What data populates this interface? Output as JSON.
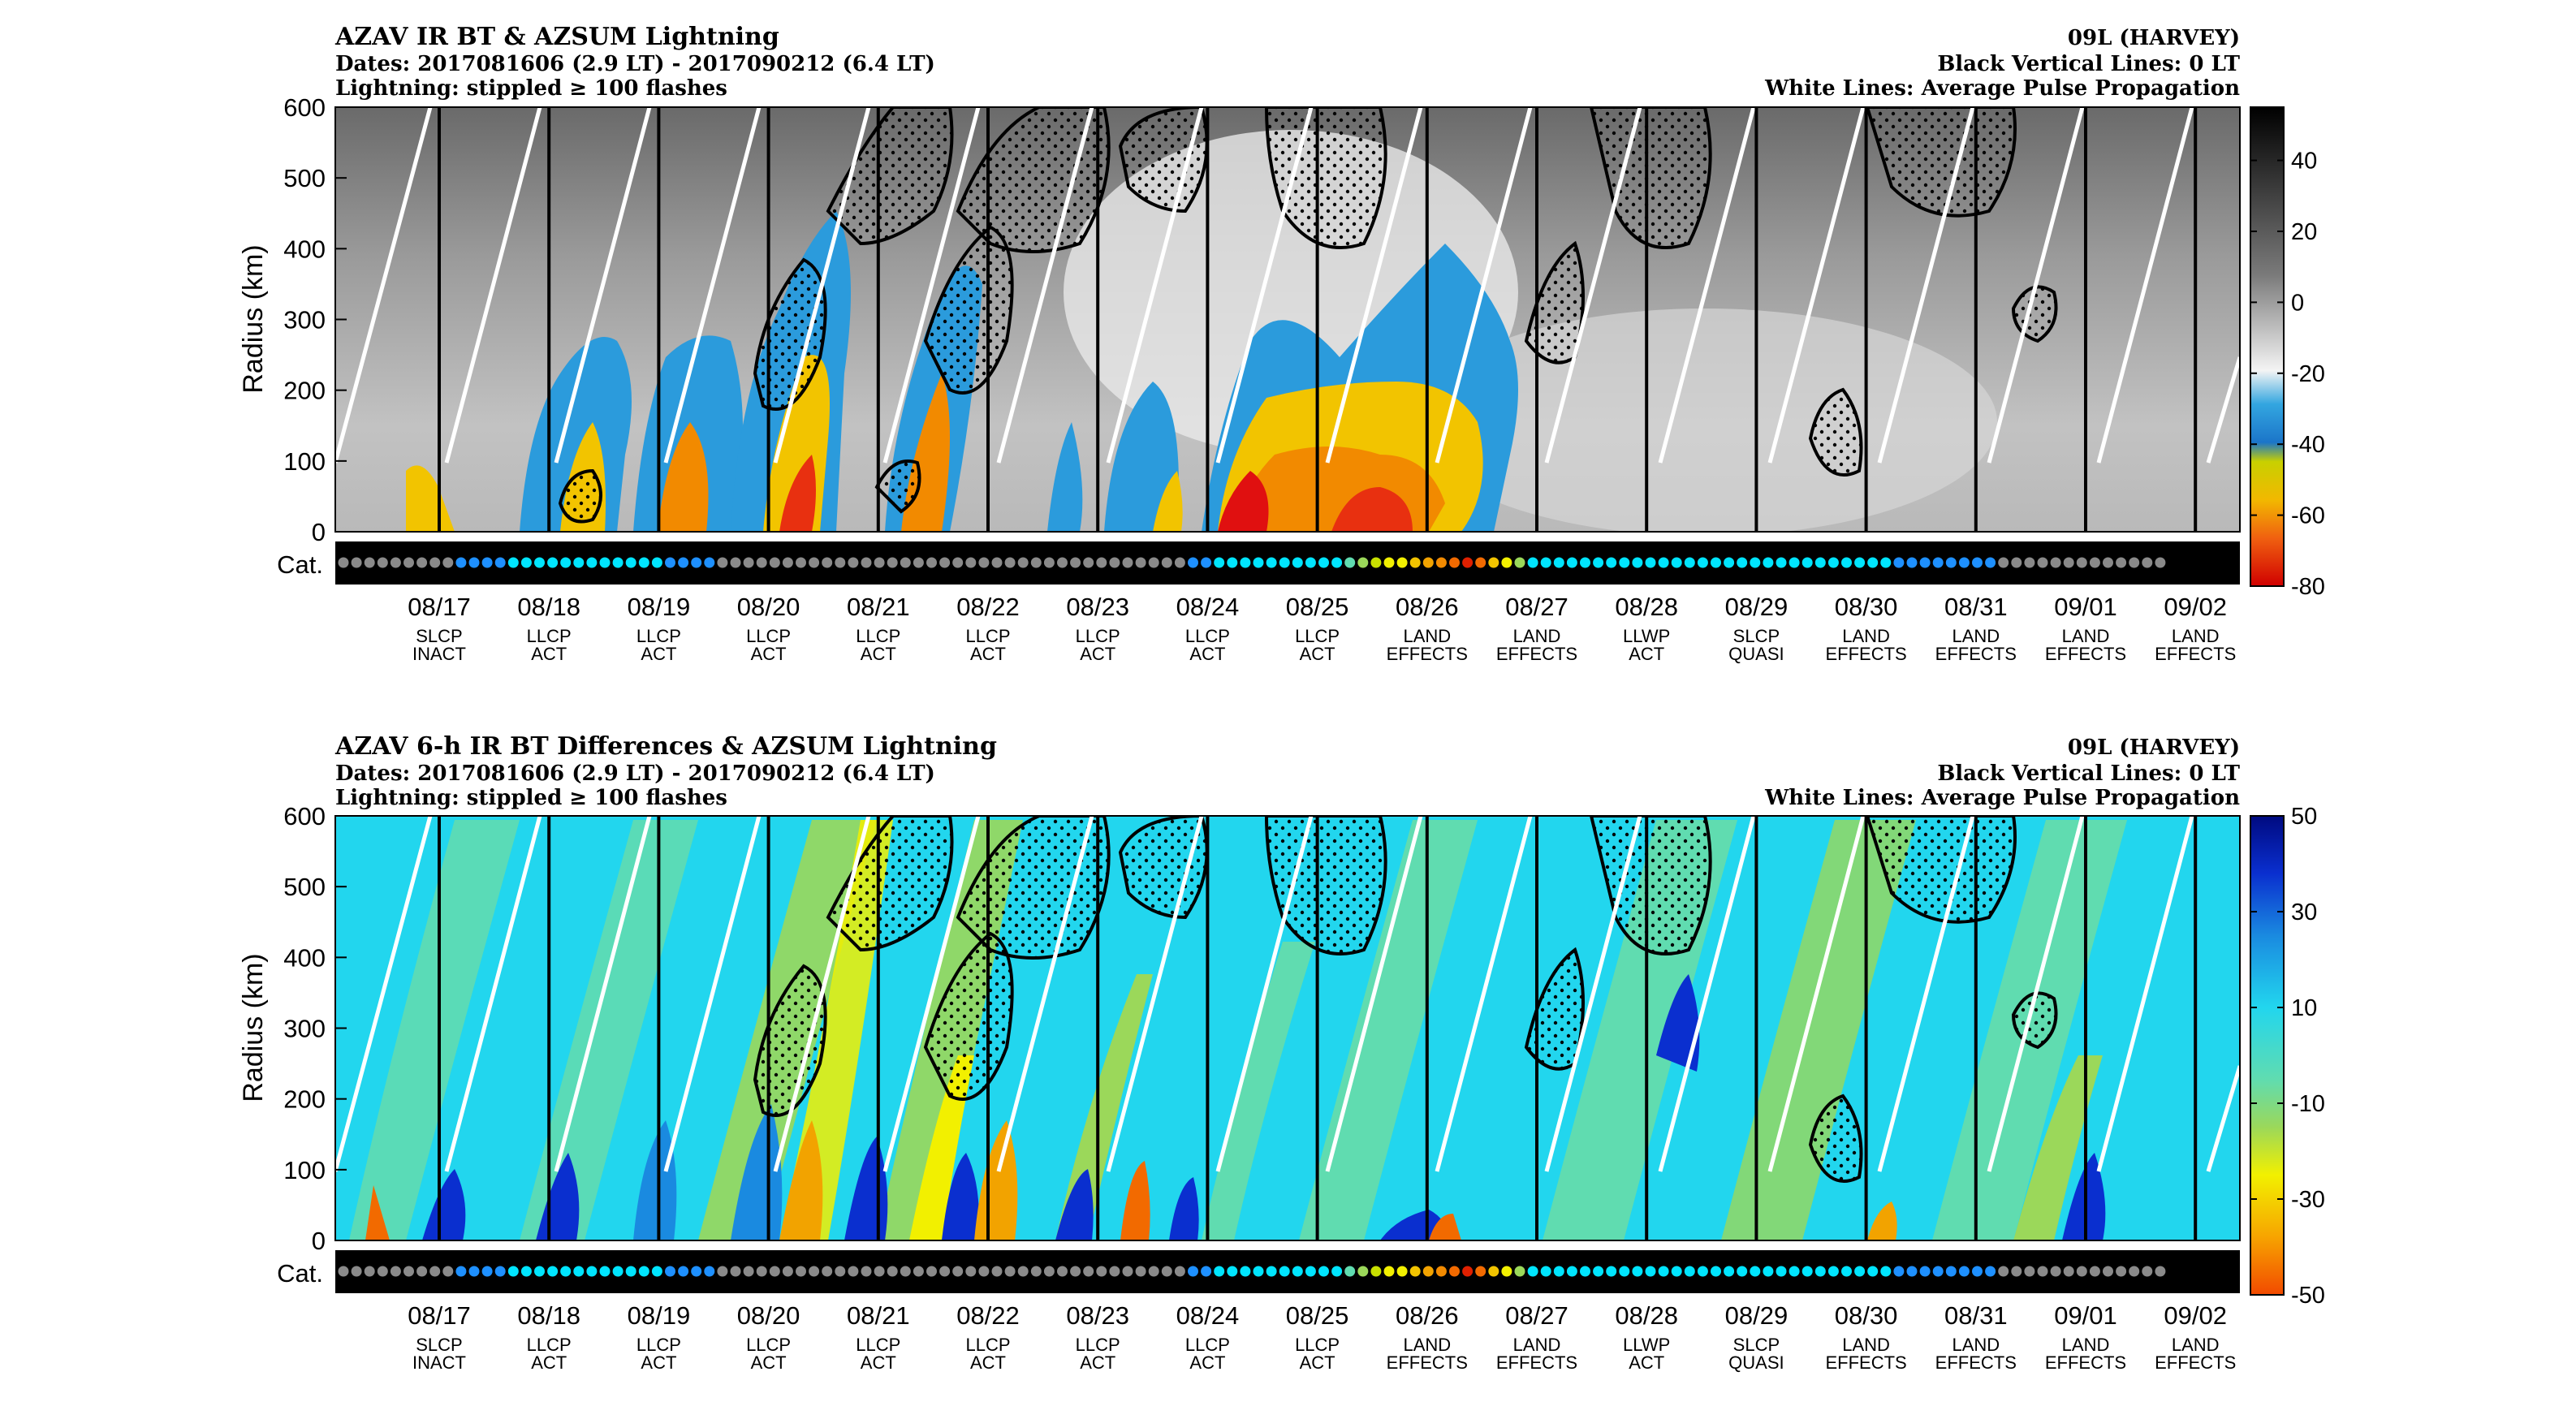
{
  "figure": {
    "panel1": {
      "title": "AZAV IR BT & AZSUM Lightning",
      "dates": "Dates: 2017081606 (2.9 LT) - 2017090212 (6.4 LT)",
      "lightning": "Lightning: stippled ≥ 100 flashes",
      "storm": "09L (HARVEY)",
      "black_lines": "Black Vertical Lines: 0 LT",
      "white_lines": "White Lines: Average Pulse Propagation",
      "colorbar_ticks": [
        "40",
        "20",
        "0",
        "-20",
        "-40",
        "-60",
        "-80"
      ]
    },
    "panel2": {
      "title": "AZAV 6-h IR BT Differences & AZSUM Lightning",
      "dates": "Dates: 2017081606 (2.9 LT) - 2017090212 (6.4 LT)",
      "lightning": "Lightning: stippled ≥ 100 flashes",
      "storm": "09L (HARVEY)",
      "black_lines": "Black Vertical Lines: 0 LT",
      "white_lines": "White Lines: Average Pulse Propagation",
      "colorbar_ticks": [
        "50",
        "30",
        "10",
        "-10",
        "-30",
        "-50"
      ]
    },
    "ylabel": "Radius (km)",
    "y_ticks": [
      "600",
      "500",
      "400",
      "300",
      "200",
      "100",
      "0"
    ],
    "cat_label": "Cat.",
    "dates": [
      "08/17",
      "08/18",
      "08/19",
      "08/20",
      "08/21",
      "08/22",
      "08/23",
      "08/24",
      "08/25",
      "08/26",
      "08/27",
      "08/28",
      "08/29",
      "08/30",
      "08/31",
      "09/01",
      "09/02"
    ],
    "phases": [
      [
        "SLCP",
        "INACT"
      ],
      [
        "LLCP",
        "ACT"
      ],
      [
        "LLCP",
        "ACT"
      ],
      [
        "LLCP",
        "ACT"
      ],
      [
        "LLCP",
        "ACT"
      ],
      [
        "LLCP",
        "ACT"
      ],
      [
        "LLCP",
        "ACT"
      ],
      [
        "LLCP",
        "ACT"
      ],
      [
        "LLCP",
        "ACT"
      ],
      [
        "LAND",
        "EFFECTS"
      ],
      [
        "LAND",
        "EFFECTS"
      ],
      [
        "LLWP",
        "ACT"
      ],
      [
        "SLCP",
        "QUASI"
      ],
      [
        "LAND",
        "EFFECTS"
      ],
      [
        "LAND",
        "EFFECTS"
      ],
      [
        "LAND",
        "EFFECTS"
      ],
      [
        "LAND",
        "EFFECTS"
      ]
    ]
  },
  "chart_data": [
    {
      "type": "heatmap",
      "title": "AZAV IR BT & AZSUM Lightning",
      "ylabel": "Radius (km)",
      "ylim": [
        0,
        600
      ],
      "yticks": [
        0,
        100,
        200,
        300,
        400,
        500,
        600
      ],
      "x_dates": [
        "08/17",
        "08/18",
        "08/19",
        "08/20",
        "08/21",
        "08/22",
        "08/23",
        "08/24",
        "08/25",
        "08/26",
        "08/27",
        "08/28",
        "08/29",
        "08/30",
        "08/31",
        "09/01",
        "09/02"
      ],
      "colorbar": {
        "range": [
          -80,
          50
        ],
        "ticks": [
          40,
          20,
          0,
          -20,
          -40,
          -60,
          -80
        ],
        "colormap": "gray to blue/yellow/red below -30"
      },
      "overlays": [
        "black vertical lines at 0 LT",
        "white lines: average pulse propagation",
        "stippled contours: lightning >= 100 flashes"
      ]
    },
    {
      "type": "heatmap",
      "title": "AZAV 6-h IR BT Differences & AZSUM Lightning",
      "ylabel": "Radius (km)",
      "ylim": [
        0,
        600
      ],
      "yticks": [
        0,
        100,
        200,
        300,
        400,
        500,
        600
      ],
      "x_dates": [
        "08/17",
        "08/18",
        "08/19",
        "08/20",
        "08/21",
        "08/22",
        "08/23",
        "08/24",
        "08/25",
        "08/26",
        "08/27",
        "08/28",
        "08/29",
        "08/30",
        "08/31",
        "09/01",
        "09/02"
      ],
      "colorbar": {
        "range": [
          -50,
          50
        ],
        "ticks": [
          50,
          30,
          10,
          -10,
          -30,
          -50
        ],
        "colormap": "dark blue (+50) through cyan, green, yellow to red (-50)"
      },
      "overlays": [
        "black vertical lines at 0 LT",
        "white lines: average pulse propagation",
        "stippled contours: lightning >= 100 flashes"
      ]
    }
  ]
}
